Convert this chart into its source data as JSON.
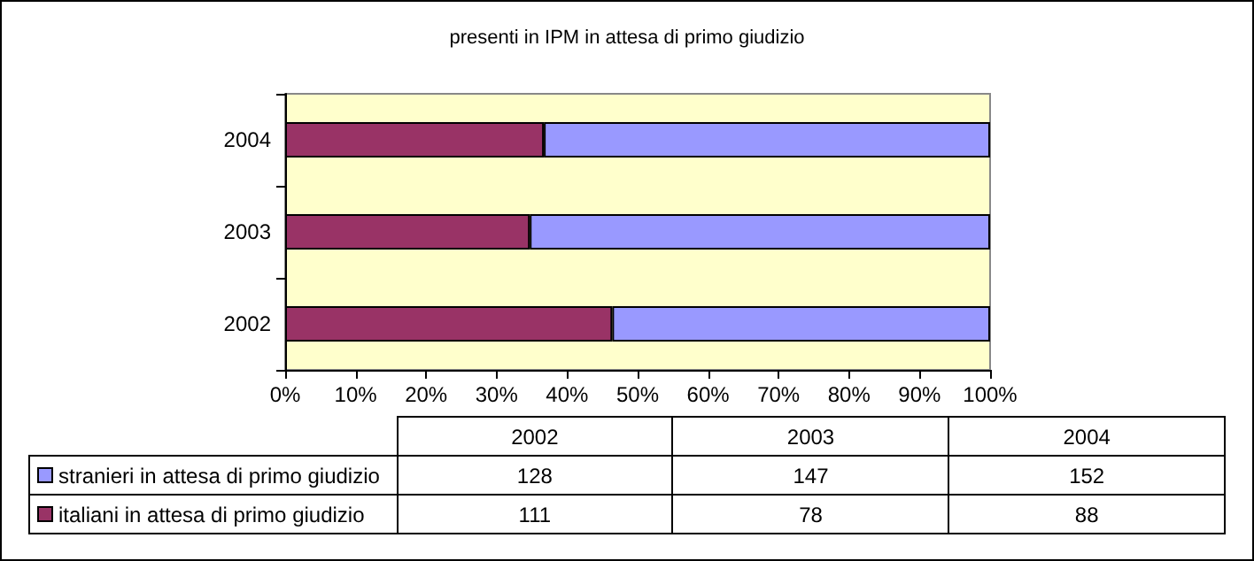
{
  "chart_data": [
    {
      "type": "bar",
      "orientation": "horizontal",
      "stacked": true,
      "title": "presenti in IPM in attesa di primo giudizio",
      "categories": [
        "2004",
        "2003",
        "2002"
      ],
      "series": [
        {
          "color": "#993366",
          "values": [
            36.7,
            34.7,
            46.4
          ]
        },
        {
          "color": "#9999ff",
          "values": [
            63.3,
            65.3,
            53.6
          ]
        }
      ],
      "xlim": [
        0,
        100
      ],
      "xticks": [
        {
          "value": 0,
          "label": "0%"
        },
        {
          "value": 10,
          "label": "10%"
        },
        {
          "value": 20,
          "label": "20%"
        },
        {
          "value": 30,
          "label": "30%"
        },
        {
          "value": 40,
          "label": "40%"
        },
        {
          "value": 50,
          "label": "50%"
        },
        {
          "value": 60,
          "label": "60%"
        },
        {
          "value": 70,
          "label": "70%"
        },
        {
          "value": 80,
          "label": "80%"
        },
        {
          "value": 90,
          "label": "90%"
        },
        {
          "value": 100,
          "label": "100%"
        }
      ],
      "grid": false
    },
    {
      "type": "other",
      "categories": [
        "2002",
        "2003",
        "2004"
      ],
      "series": [
        {
          "name": "stranieri in attesa di primo giudizio",
          "color": "#9999ff",
          "values": [
            128,
            147,
            152
          ]
        },
        {
          "name": "italiani in attesa di primo giudizio",
          "color": "#993366",
          "values": [
            111,
            78,
            88
          ]
        }
      ],
      "data_labels": true,
      "legend": "left"
    }
  ]
}
